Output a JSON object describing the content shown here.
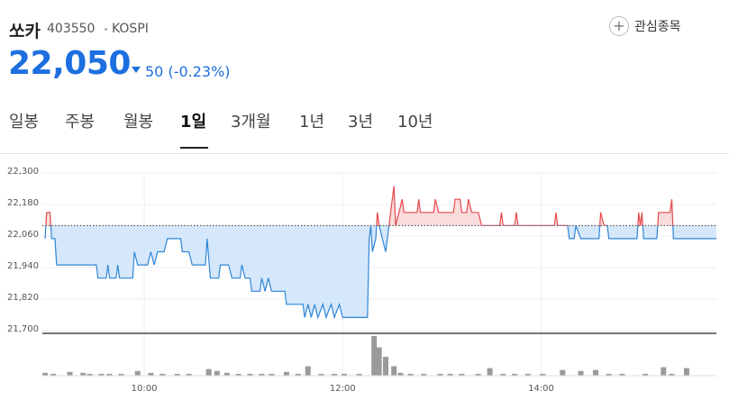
{
  "header": {
    "name": "쏘카",
    "code": "403550",
    "market": "KOSPI",
    "watch_button": "관심종목"
  },
  "quote": {
    "price": "22,050",
    "change": "50",
    "change_rate": "(-0.23%)"
  },
  "tabs": [
    "일봉",
    "주봉",
    "월봉",
    "1일",
    "3개월",
    "1년",
    "3년",
    "10년"
  ],
  "active_tab": 3,
  "chart_data": {
    "type": "line",
    "x": [
      "09:00",
      "09:01",
      "09:03",
      "09:04",
      "09:06",
      "09:07",
      "09:31",
      "09:32",
      "09:37",
      "09:38",
      "09:39",
      "09:43",
      "09:44",
      "09:45",
      "09:53",
      "09:54",
      "09:56",
      "10:02",
      "10:04",
      "10:06",
      "10:08",
      "10:12",
      "10:14",
      "10:22",
      "10:23",
      "10:27",
      "10:29",
      "10:37",
      "10:38",
      "10:40",
      "10:45",
      "10:46",
      "10:51",
      "10:53",
      "10:58",
      "10:59",
      "11:01",
      "11:04",
      "11:05",
      "11:10",
      "11:11",
      "11:13",
      "11:15",
      "11:17",
      "11:25",
      "11:26",
      "11:36",
      "11:37",
      "11:39",
      "11:41",
      "11:43",
      "11:45",
      "11:48",
      "11:50",
      "11:53",
      "11:55",
      "11:58",
      "12:00",
      "12:15",
      "12:16",
      "12:17",
      "12:18",
      "12:20",
      "12:21",
      "12:22",
      "12:24",
      "12:26",
      "12:28",
      "12:30",
      "12:31",
      "12:32",
      "12:34",
      "12:36",
      "12:37",
      "12:45",
      "12:46",
      "12:47",
      "12:55",
      "12:56",
      "12:58",
      "13:07",
      "13:08",
      "13:11",
      "13:12",
      "13:15",
      "13:16",
      "13:18",
      "13:22",
      "13:24",
      "13:35",
      "13:36",
      "13:37",
      "13:44",
      "13:45",
      "13:46",
      "14:08",
      "14:09",
      "14:10",
      "14:16",
      "14:17",
      "14:20",
      "14:21",
      "14:24",
      "14:35",
      "14:36",
      "14:38",
      "14:40",
      "14:41",
      "14:58",
      "14:59",
      "15:00",
      "15:01",
      "15:02",
      "15:10",
      "15:11",
      "15:18",
      "15:19",
      "15:20",
      "15:46"
    ],
    "values": [
      22050,
      22150,
      22150,
      22050,
      22050,
      21950,
      21950,
      21900,
      21900,
      21950,
      21900,
      21900,
      21950,
      21900,
      21900,
      22000,
      21950,
      21950,
      22000,
      21950,
      22000,
      22000,
      22050,
      22050,
      22000,
      22000,
      21950,
      21950,
      22050,
      21900,
      21900,
      21950,
      21950,
      21900,
      21900,
      21950,
      21900,
      21900,
      21850,
      21850,
      21900,
      21850,
      21900,
      21850,
      21850,
      21800,
      21800,
      21750,
      21800,
      21750,
      21800,
      21750,
      21800,
      21750,
      21800,
      21750,
      21800,
      21750,
      21750,
      22050,
      22100,
      22000,
      22050,
      22150,
      22100,
      22050,
      22000,
      22100,
      22200,
      22250,
      22100,
      22150,
      22200,
      22150,
      22150,
      22200,
      22150,
      22150,
      22200,
      22150,
      22150,
      22200,
      22200,
      22150,
      22150,
      22200,
      22150,
      22150,
      22100,
      22100,
      22150,
      22100,
      22100,
      22150,
      22100,
      22100,
      22150,
      22100,
      22100,
      22050,
      22050,
      22100,
      22050,
      22050,
      22150,
      22100,
      22100,
      22050,
      22050,
      22150,
      22100,
      22150,
      22050,
      22050,
      22150,
      22150,
      22200,
      22050,
      22050
    ],
    "color_up": "#e5484d",
    "color_down": "#2e86d6",
    "fill_up": "#fbdcdc",
    "fill_down": "#d5e7fa",
    "baseline": 22100,
    "xlim": [
      "09:00",
      "15:46"
    ],
    "xticks": [
      "10:00",
      "12:00",
      "14:00"
    ],
    "ylim": [
      21700,
      22300
    ],
    "yticks": [
      {
        "value": 21700,
        "label": "21,700"
      },
      {
        "value": 21820,
        "label": "21,820"
      },
      {
        "value": 21940,
        "label": "21,940"
      },
      {
        "value": 22060,
        "label": "22,060"
      },
      {
        "value": 22180,
        "label": "22,180"
      },
      {
        "value": 22300,
        "label": "22,300"
      }
    ],
    "grid": true,
    "volume": {
      "color": "#9a9a9a",
      "x": [
        "09:00",
        "09:05",
        "09:15",
        "09:23",
        "09:27",
        "09:34",
        "09:39",
        "09:46",
        "09:56",
        "10:04",
        "10:11",
        "10:20",
        "10:27",
        "10:39",
        "10:44",
        "10:50",
        "10:57",
        "11:04",
        "11:11",
        "11:17",
        "11:26",
        "11:33",
        "11:39",
        "11:47",
        "11:55",
        "12:01",
        "12:10",
        "12:19",
        "12:22",
        "12:26",
        "12:31",
        "12:35",
        "12:41",
        "12:49",
        "12:59",
        "13:05",
        "13:12",
        "13:22",
        "13:29",
        "13:37",
        "13:44",
        "13:52",
        "14:01",
        "14:13",
        "14:24",
        "14:33",
        "14:41",
        "14:49",
        "15:03",
        "15:14",
        "15:19",
        "15:28"
      ],
      "values": [
        3,
        2,
        4,
        3,
        2,
        2,
        2,
        2,
        5,
        3,
        2,
        2,
        2,
        7,
        5,
        3,
        2,
        2,
        2,
        2,
        4,
        2,
        10,
        2,
        2,
        2,
        2,
        42,
        30,
        20,
        10,
        3,
        2,
        2,
        2,
        2,
        2,
        2,
        8,
        2,
        2,
        2,
        2,
        6,
        5,
        6,
        2,
        2,
        2,
        9,
        2,
        8
      ]
    }
  }
}
